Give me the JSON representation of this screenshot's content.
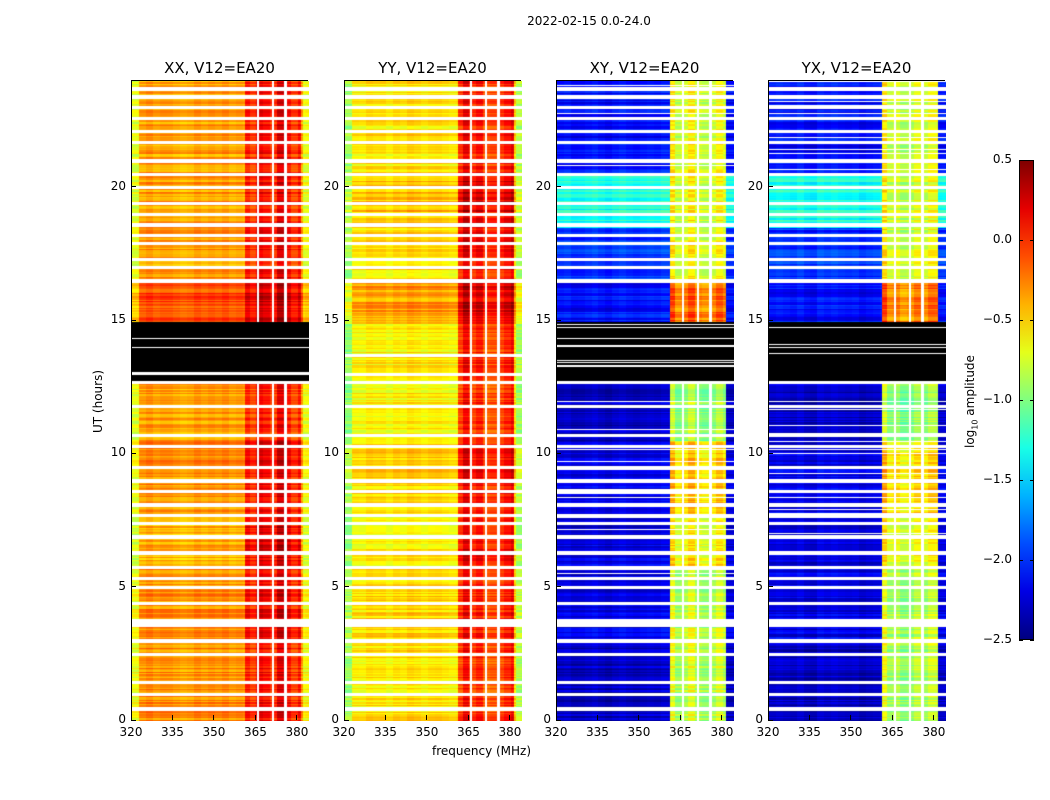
{
  "title": "2022-02-15 0.0-24.0",
  "chart_data": {
    "type": "heatmap",
    "xlabel": "frequency (MHz)",
    "ylabel": "UT (hours)",
    "xlim": [
      320,
      384
    ],
    "ylim": [
      0,
      24
    ],
    "xticks": [
      "320",
      "335",
      "350",
      "365",
      "380"
    ],
    "yticks": [
      "0",
      "5",
      "10",
      "15",
      "20"
    ],
    "colorbar": {
      "label_main": "log",
      "label_sub": "10",
      "label_rest": " amplitude",
      "range": [
        -2.5,
        0.5
      ],
      "colormap": "jet",
      "ticks": [
        "0.5",
        "0.0",
        "−0.5",
        "−1.0",
        "−1.5",
        "−2.0",
        "−2.5"
      ]
    },
    "panels": [
      {
        "title": "XX, V12=EA20",
        "black_hours": [
          [
            12.75,
            14.95
          ]
        ]
      },
      {
        "title": "YY, V12=EA20",
        "black_hours": []
      },
      {
        "title": "XY, V12=EA20",
        "black_hours": [
          [
            12.75,
            14.95
          ]
        ]
      },
      {
        "title": "YX, V12=EA20",
        "black_hours": [
          [
            12.75,
            14.95
          ]
        ]
      }
    ],
    "high_band_mhz": [
      361,
      381
    ],
    "flagged_channels_mhz": [
      365.5,
      371,
      375.5
    ],
    "flagged_hours": [
      0.45,
      1.0,
      1.45,
      2.5,
      3.0,
      3.6,
      3.75,
      4.4,
      5.0,
      5.35,
      5.75,
      6.3,
      6.9,
      7.4,
      7.7,
      8.1,
      8.6,
      9.0,
      9.5,
      10.3,
      10.7,
      11.8,
      12.7,
      13.0,
      13.7,
      16.5,
      17.0,
      17.3,
      17.9,
      18.2,
      18.6,
      19.0,
      19.4,
      20.0,
      20.5,
      21.0,
      21.7,
      22.1,
      22.6,
      23.0,
      23.4,
      23.7
    ],
    "segments": [
      {
        "hours": [
          0,
          3
        ],
        "low": [
          -0.3,
          -0.55,
          -2.3,
          -2.3
        ],
        "high": [
          0.1,
          0.0,
          -0.8,
          -0.8
        ]
      },
      {
        "hours": [
          3,
          5.7
        ],
        "low": [
          -0.3,
          -0.5,
          -2.2,
          -2.2
        ],
        "high": [
          0.15,
          0.05,
          -0.8,
          -0.8
        ]
      },
      {
        "hours": [
          5.7,
          7.7
        ],
        "low": [
          -0.4,
          -0.6,
          -2.2,
          -2.2
        ],
        "high": [
          0.2,
          0.1,
          -0.6,
          -0.6
        ]
      },
      {
        "hours": [
          7.7,
          10.5
        ],
        "low": [
          -0.3,
          -0.5,
          -2.2,
          -2.2
        ],
        "high": [
          0.15,
          0.1,
          -0.5,
          -0.5
        ]
      },
      {
        "hours": [
          10.5,
          14.9
        ],
        "low": [
          -0.35,
          -0.6,
          -2.3,
          -2.3
        ],
        "high": [
          0.05,
          0.0,
          -0.9,
          -0.9
        ]
      },
      {
        "hours": [
          14.9,
          16.5
        ],
        "low": [
          -0.1,
          -0.35,
          -2.1,
          -2.1
        ],
        "high": [
          0.25,
          0.2,
          -0.2,
          -0.2
        ]
      },
      {
        "hours": [
          16.5,
          18.5
        ],
        "low": [
          -0.35,
          -0.55,
          -2.0,
          -2.0
        ],
        "high": [
          0.1,
          0.1,
          -0.7,
          -0.7
        ]
      },
      {
        "hours": [
          18.5,
          20.5
        ],
        "low": [
          -0.35,
          -0.45,
          -1.3,
          -1.3
        ],
        "high": [
          0.1,
          0.2,
          -0.7,
          -0.7
        ]
      },
      {
        "hours": [
          20.5,
          24
        ],
        "low": [
          -0.35,
          -0.55,
          -2.1,
          -2.1
        ],
        "high": [
          0.1,
          0.05,
          -0.7,
          -0.7
        ]
      }
    ]
  }
}
